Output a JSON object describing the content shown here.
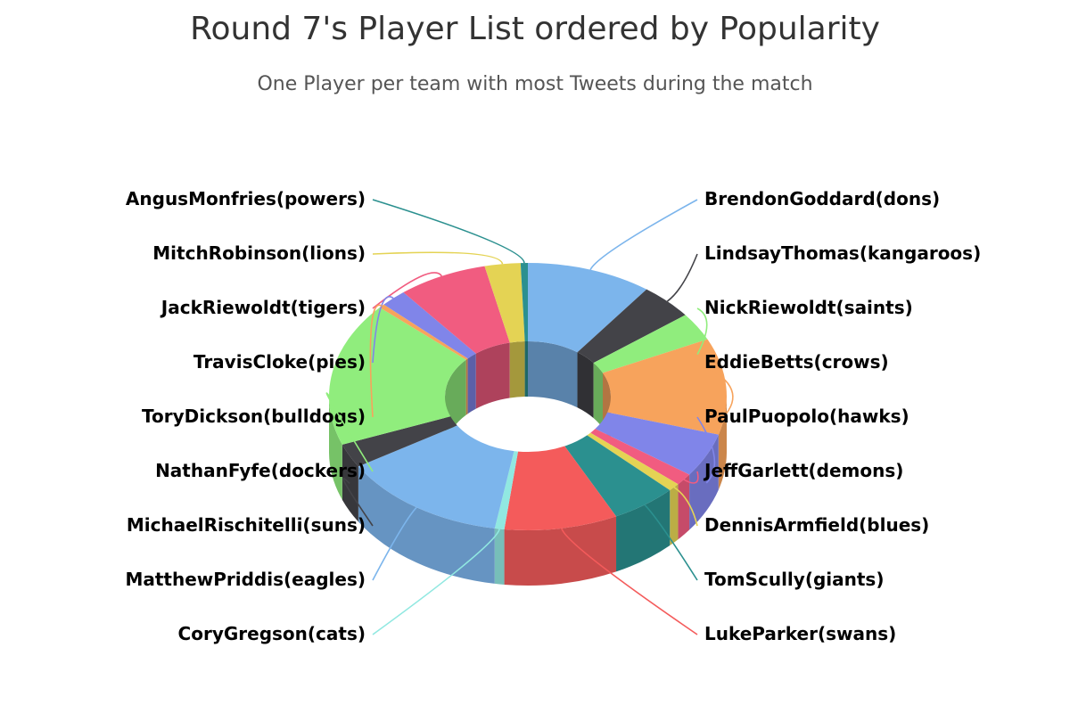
{
  "chart_data": {
    "type": "pie",
    "variant": "3d-donut",
    "title": "Round 7's Player List ordered by Popularity",
    "subtitle": "One Player per team with most Tweets during the match",
    "slices": [
      {
        "label": "BrendonGoddard(dons)",
        "value": 10.5,
        "color": "#7cb5ec"
      },
      {
        "label": "LindsayThomas(kangaroos)",
        "value": 4.5,
        "color": "#434348"
      },
      {
        "label": "NickRiewoldt(saints)",
        "value": 3.5,
        "color": "#90ed7d"
      },
      {
        "label": "EddieBetts(crows)",
        "value": 12,
        "color": "#f7a35c"
      },
      {
        "label": "PaulPuopolo(hawks)",
        "value": 5.5,
        "color": "#8085e9"
      },
      {
        "label": "JeffGarlett(demons)",
        "value": 1.5,
        "color": "#f15c80"
      },
      {
        "label": "DennisArmfield(blues)",
        "value": 1,
        "color": "#e4d354"
      },
      {
        "label": "TomScully(giants)",
        "value": 5.5,
        "color": "#2b908f"
      },
      {
        "label": "LukeParker(swans)",
        "value": 9.5,
        "color": "#f45b5b"
      },
      {
        "label": "CoryGregson(cats)",
        "value": 0.8,
        "color": "#91e8e1"
      },
      {
        "label": "MatthewPriddis(eagles)",
        "value": 14,
        "color": "#7cb5ec"
      },
      {
        "label": "MichaelRischitelli(suns)",
        "value": 3,
        "color": "#434348"
      },
      {
        "label": "NathanFyfe(dockers)",
        "value": 18,
        "color": "#90ed7d"
      },
      {
        "label": "ToryDickson(bulldogs)",
        "value": 0.5,
        "color": "#f7a35c"
      },
      {
        "label": "TravisCloke(pies)",
        "value": 2.2,
        "color": "#8085e9"
      },
      {
        "label": "JackRiewoldt(tigers)",
        "value": 7.5,
        "color": "#f15c80"
      },
      {
        "label": "MitchRobinson(lions)",
        "value": 3,
        "color": "#e4d354"
      },
      {
        "label": "AngusMonfries(powers)",
        "value": 0.6,
        "color": "#2b908f"
      }
    ]
  }
}
